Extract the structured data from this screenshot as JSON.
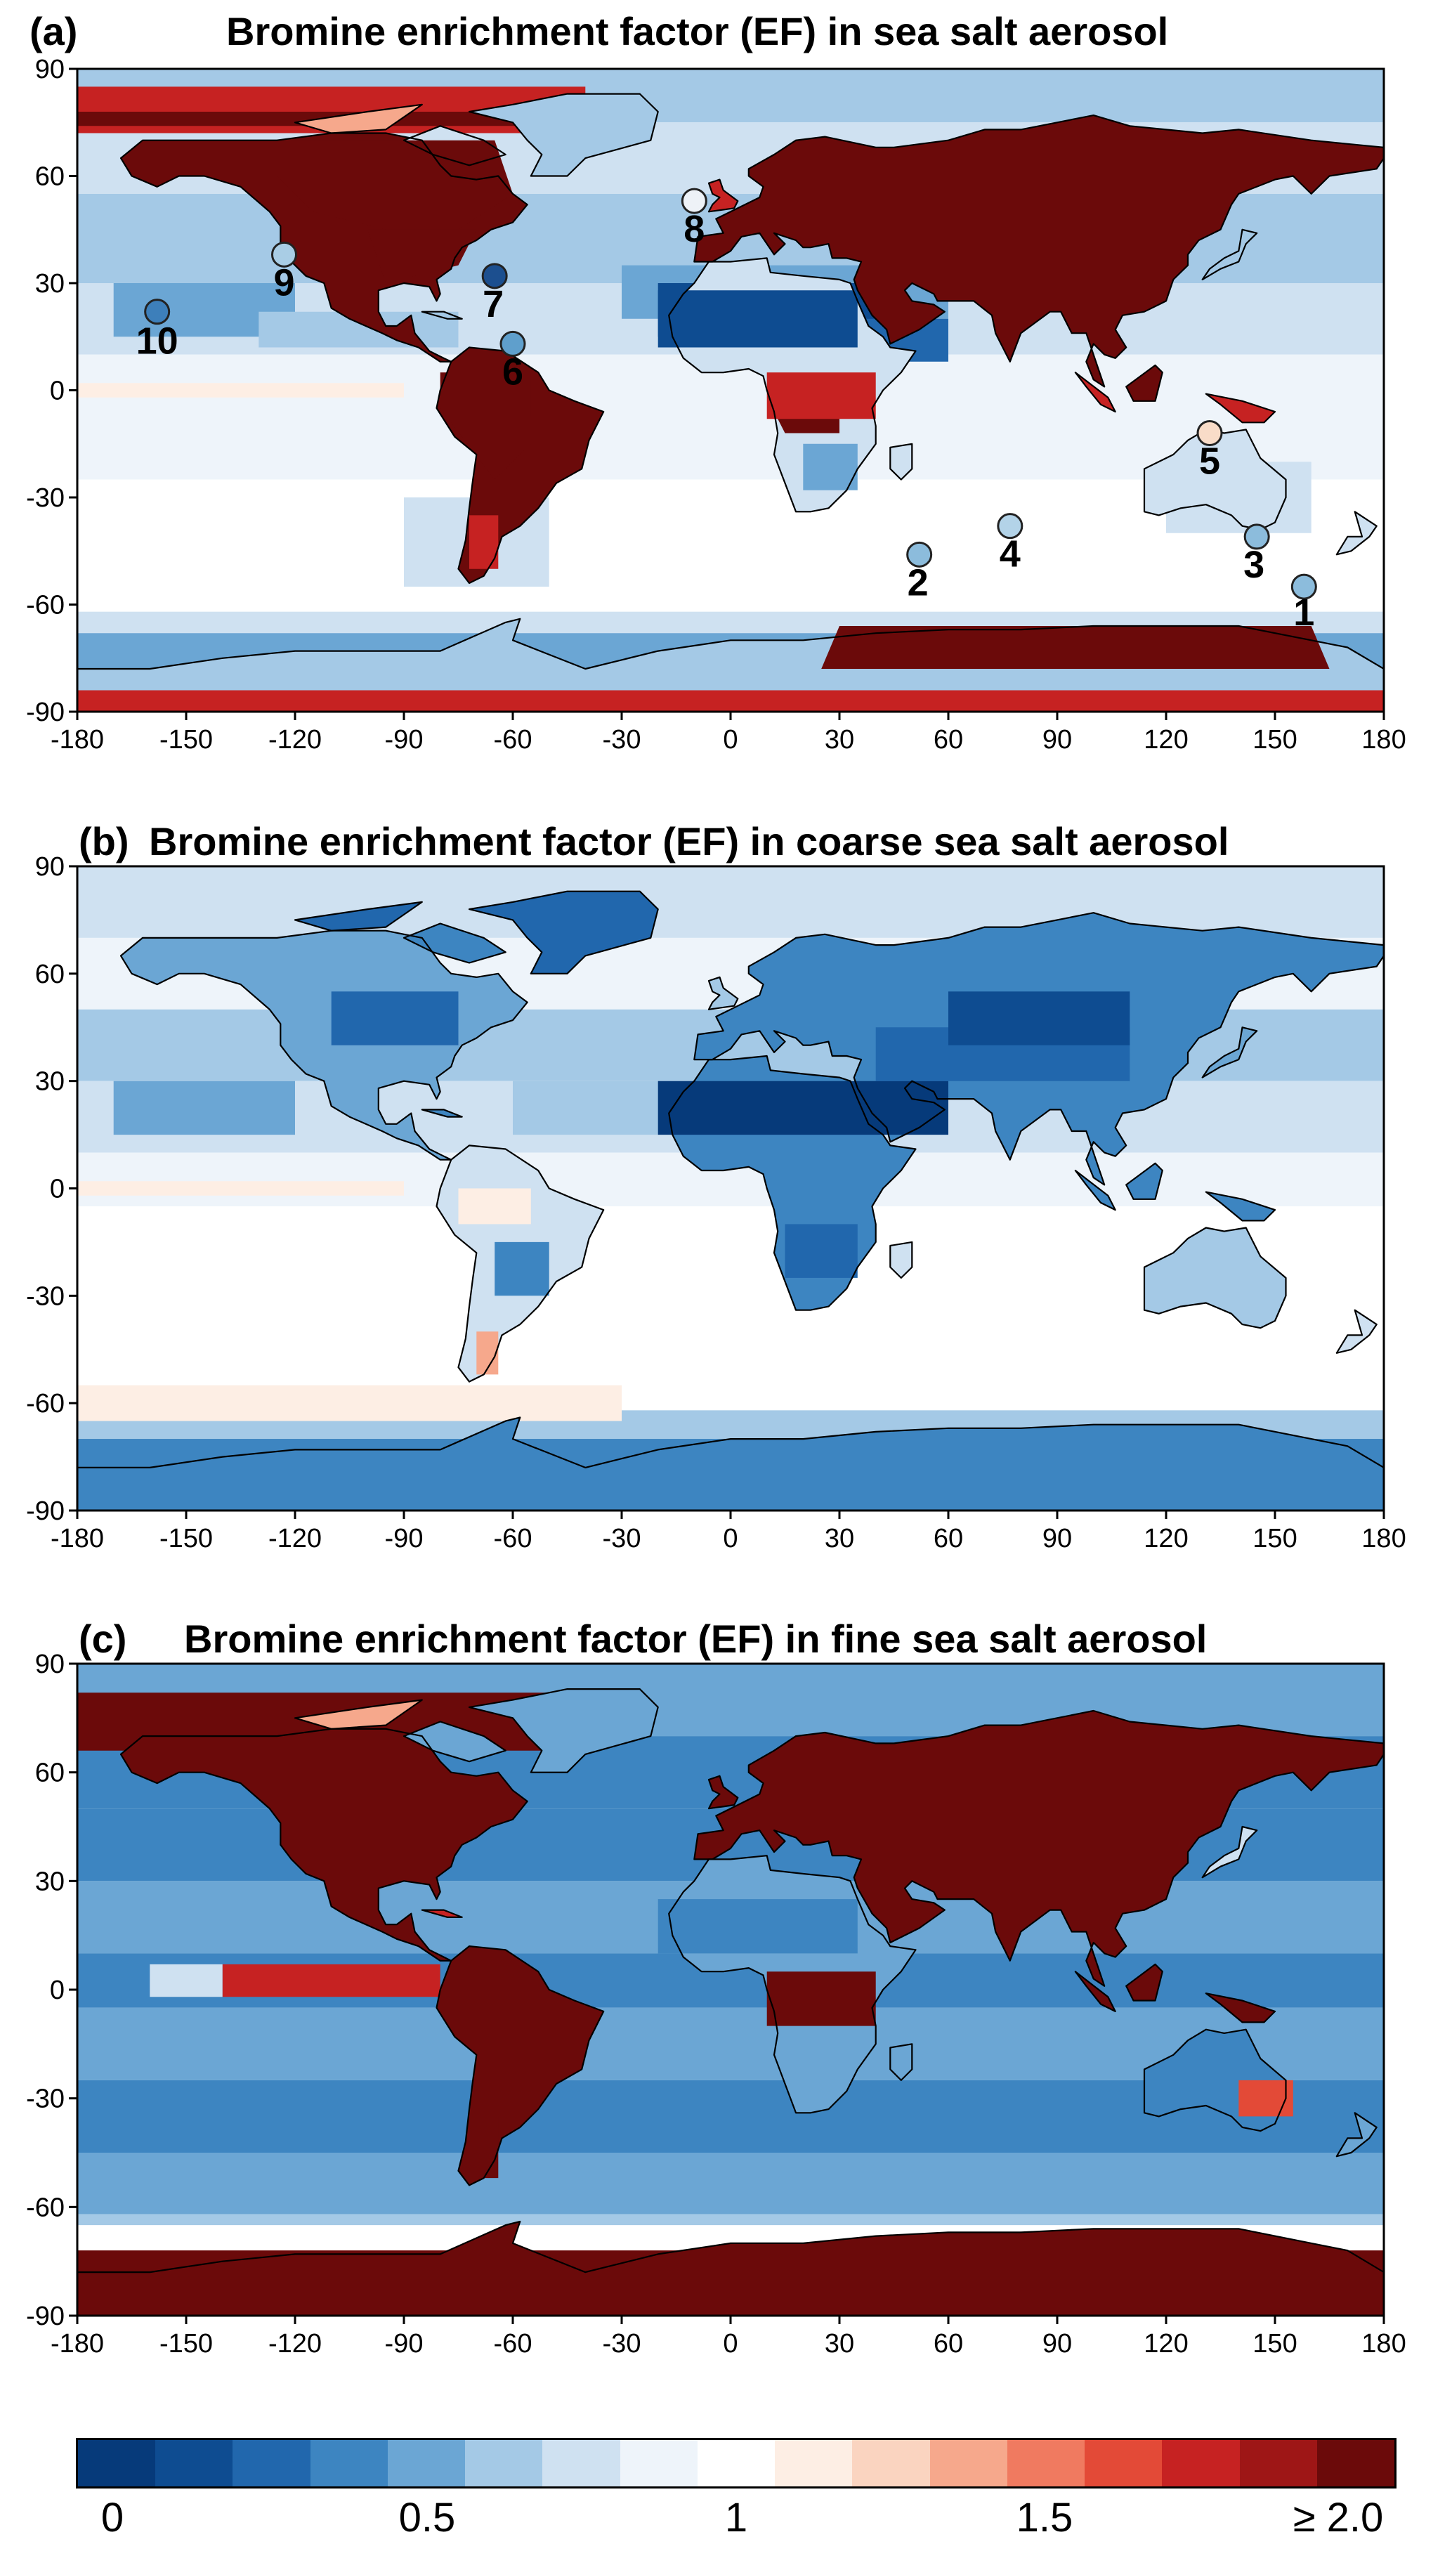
{
  "panels": [
    {
      "id": "a",
      "label": "(a)",
      "title": "Bromine enrichment factor (EF) in sea salt aerosol"
    },
    {
      "id": "b",
      "label": "(b)",
      "title": "Bromine enrichment factor (EF) in coarse sea salt aerosol"
    },
    {
      "id": "c",
      "label": "(c)",
      "title": "Bromine enrichment factor (EF) in fine sea salt aerosol"
    }
  ],
  "axes": {
    "x_ticks": [
      "-180",
      "-150",
      "-120",
      "-90",
      "-60",
      "-30",
      "0",
      "30",
      "60",
      "90",
      "120",
      "150",
      "180"
    ],
    "y_ticks": [
      "90",
      "60",
      "30",
      "0",
      "-30",
      "-60",
      "-90"
    ],
    "xlim": [
      -180,
      180
    ],
    "ylim": [
      -90,
      90
    ]
  },
  "sites": [
    {
      "label": "1",
      "lon": 158,
      "lat": -55,
      "color": "#8cbcdc"
    },
    {
      "label": "2",
      "lon": 52,
      "lat": -46,
      "color": "#8cbcdc"
    },
    {
      "label": "3",
      "lon": 145,
      "lat": -41,
      "color": "#8cbcdc"
    },
    {
      "label": "4",
      "lon": 77,
      "lat": -38,
      "color": "#b3d3e8"
    },
    {
      "label": "5",
      "lon": 132,
      "lat": -12,
      "color": "#f9dcc8"
    },
    {
      "label": "6",
      "lon": -60,
      "lat": 13,
      "color": "#5f9fcc"
    },
    {
      "label": "7",
      "lon": -65,
      "lat": 32,
      "color": "#1c4f8f"
    },
    {
      "label": "8",
      "lon": -10,
      "lat": 53,
      "color": "#eef2f7"
    },
    {
      "label": "9",
      "lon": -123,
      "lat": 38,
      "color": "#a9cde5"
    },
    {
      "label": "10",
      "lon": -158,
      "lat": 22,
      "color": "#3d7fba"
    }
  ],
  "colorbar": {
    "colors": [
      "#063a7a",
      "#0e4c91",
      "#2167ad",
      "#3d85c1",
      "#6ba6d4",
      "#a4c9e6",
      "#cfe1f1",
      "#eef4fa",
      "#ffffff",
      "#fdeee4",
      "#fad4c0",
      "#f6a88c",
      "#f07a60",
      "#e34a37",
      "#c62222",
      "#9e1616",
      "#6b0a0a"
    ],
    "tick_labels": [
      "0",
      "0.5",
      "1",
      "1.5",
      "≥ 2.0"
    ]
  },
  "chart_data": [
    {
      "type": "heatmap",
      "title": "Bromine enrichment factor (EF) in sea salt aerosol",
      "xlabel": "",
      "ylabel": "",
      "xlim": [
        -180,
        180
      ],
      "ylim": [
        -90,
        90
      ],
      "color_scale": [
        0,
        2.0
      ],
      "sites_shown": [
        "1",
        "2",
        "3",
        "4",
        "5",
        "6",
        "7",
        "8",
        "9",
        "10"
      ]
    },
    {
      "type": "heatmap",
      "title": "Bromine enrichment factor (EF) in coarse sea salt aerosol",
      "xlabel": "",
      "ylabel": "",
      "xlim": [
        -180,
        180
      ],
      "ylim": [
        -90,
        90
      ],
      "color_scale": [
        0,
        2.0
      ]
    },
    {
      "type": "heatmap",
      "title": "Bromine enrichment factor (EF) in fine sea salt aerosol",
      "xlabel": "",
      "ylabel": "",
      "xlim": [
        -180,
        180
      ],
      "ylim": [
        -90,
        90
      ],
      "color_scale": [
        0,
        2.0
      ]
    }
  ]
}
